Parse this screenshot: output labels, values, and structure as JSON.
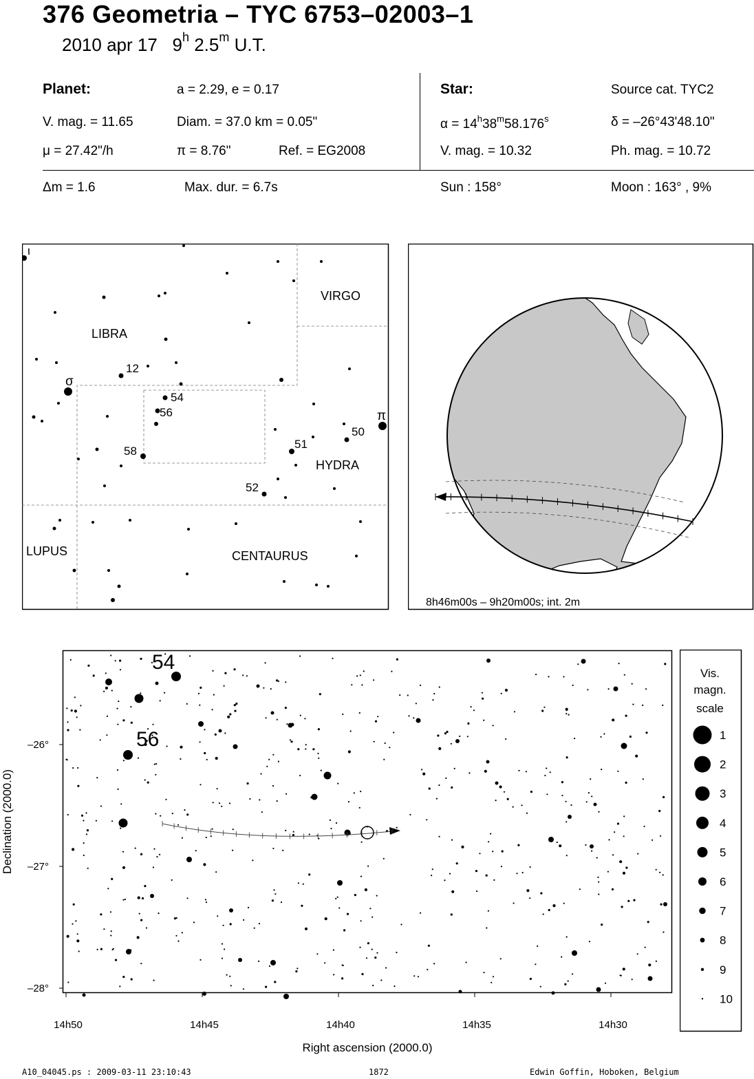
{
  "header": {
    "title": "376 Geometria  –  TYC 6753–02003–1",
    "date": "2010 apr 17",
    "hour_num": "9",
    "hour_unit": "h",
    "min_num": "2.5",
    "min_unit": "m",
    "time_suffix": "U.T."
  },
  "planet": {
    "heading": "Planet:",
    "orbit": "a = 2.29, e = 0.17",
    "vmag": "V. mag. = 11.65",
    "diam": "Diam. = 37.0 km = 0.05\"",
    "mu": "μ =  27.42\"/h",
    "pi": "π =  8.76\"",
    "ref": "Ref. = EG2008"
  },
  "star": {
    "heading": "Star:",
    "source": "Source cat.  TYC2",
    "ra_prefix": "α = 14",
    "ra_h": "h",
    "ra_m_val": "38",
    "ra_m": "m",
    "ra_s_val": "58.176",
    "ra_s": "s",
    "dec": "δ = –26°43'48.10\"",
    "vmag": "V. mag. = 10.32",
    "phmag": "Ph. mag. = 10.72"
  },
  "extra": {
    "dm": "Δm = 1.6",
    "maxdur": "Max. dur. = 6.7s",
    "sun": "Sun : 158°",
    "moon": "Moon : 163° ,  9%"
  },
  "constellation_map": {
    "labels": [
      "LIBRA",
      "VIRGO",
      "HYDRA",
      "LUPUS",
      "CENTAURUS"
    ],
    "star_labels": [
      "ι",
      "σ",
      "π",
      "12",
      "54",
      "56",
      "58",
      "50",
      "51",
      "52"
    ]
  },
  "globe": {
    "caption": "8h46m00s –  9h20m00s; int.  2m"
  },
  "detail_chart": {
    "xlabel": "Right ascension (2000.0)",
    "ylabel": "Declination (2000.0)",
    "x_ticks": [
      "14h50",
      "14h45",
      "14h40",
      "14h35",
      "14h30"
    ],
    "y_ticks": [
      "–26°",
      "–27°",
      "–28°"
    ],
    "star_labels": [
      "54",
      "56"
    ]
  },
  "legend": {
    "title_lines": [
      "Vis.",
      "magn.",
      "scale"
    ],
    "items": [
      "1",
      "2",
      "3",
      "4",
      "5",
      "6",
      "7",
      "8",
      "9",
      "10"
    ]
  },
  "footer": {
    "file": "A10_04045.ps : 2009-03-11 23:10:43",
    "number": "1872",
    "author": "Edwin Goffin, Hoboken, Belgium"
  }
}
